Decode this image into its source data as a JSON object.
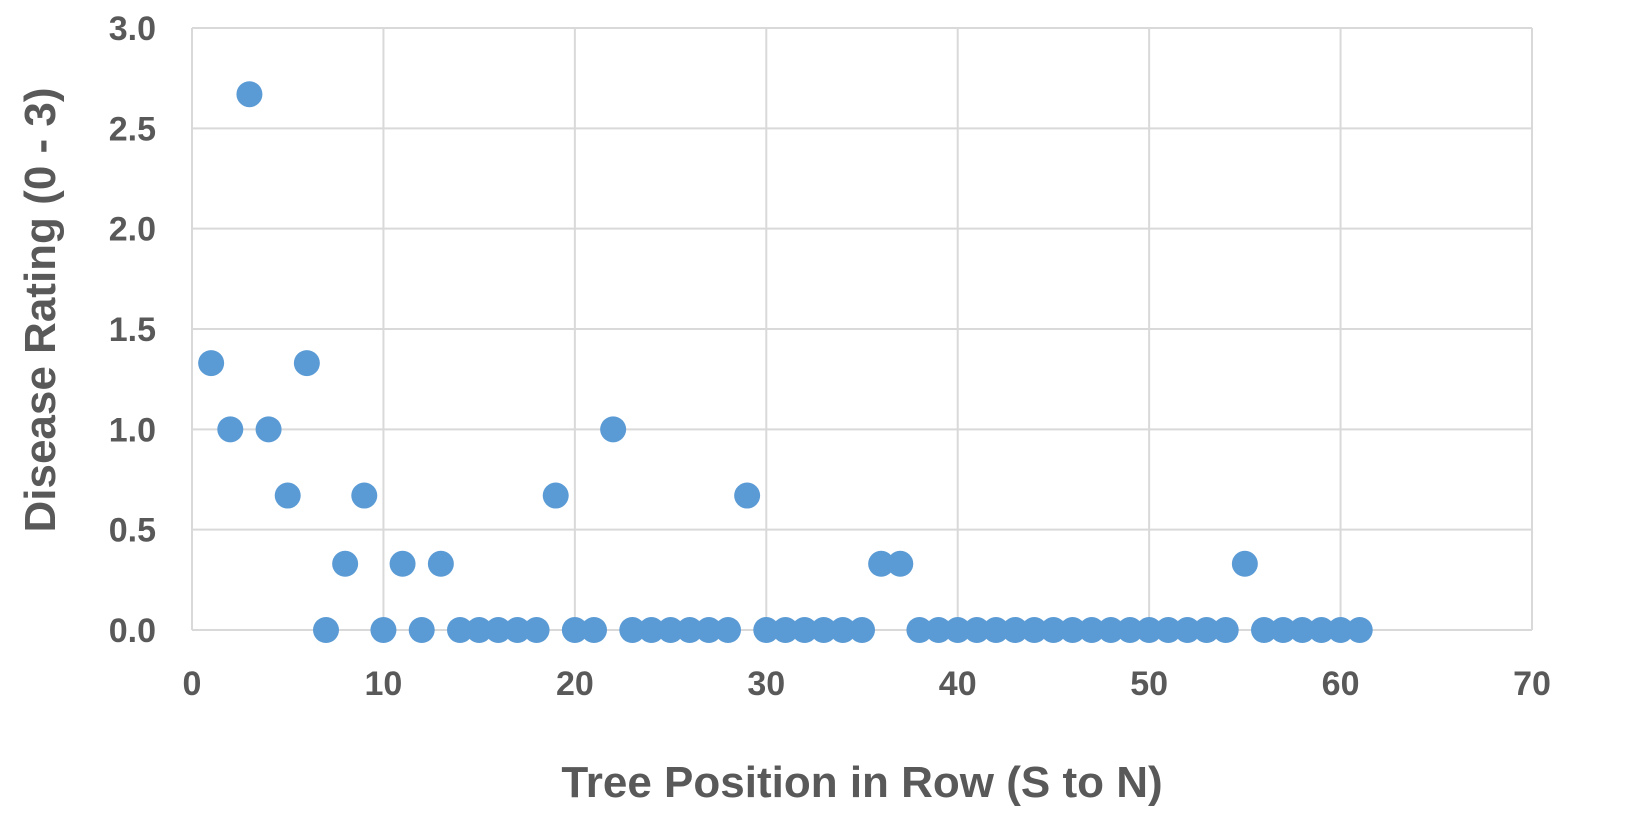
{
  "chart_data": {
    "type": "scatter",
    "title": "",
    "xlabel": "Tree Position in Row (S to N)",
    "ylabel": "Disease Rating (0 - 3)",
    "xlim": [
      0,
      70
    ],
    "ylim": [
      0,
      3
    ],
    "x_ticks": [
      "0",
      "10",
      "20",
      "30",
      "40",
      "50",
      "60",
      "70"
    ],
    "y_ticks": [
      "0.0",
      "0.5",
      "1.0",
      "1.5",
      "2.0",
      "2.5",
      "3.0"
    ],
    "grid": true,
    "legend": "none",
    "marker_color": "#5b9bd5",
    "series": [
      {
        "x": [
          1,
          2,
          3,
          4,
          5,
          6,
          7,
          8,
          9,
          10,
          11,
          12,
          13,
          14,
          15,
          16,
          17,
          18,
          19,
          20,
          21,
          22,
          23,
          24,
          25,
          26,
          27,
          28,
          29,
          30,
          31,
          32,
          33,
          34,
          35,
          36,
          37,
          38,
          39,
          40,
          41,
          42,
          43,
          44,
          45,
          46,
          47,
          48,
          49,
          50,
          51,
          52,
          53,
          54,
          55,
          56,
          57,
          58,
          59,
          60,
          61
        ],
        "y": [
          1.33,
          1.0,
          2.67,
          1.0,
          0.67,
          1.33,
          0,
          0.33,
          0.67,
          0,
          0.33,
          0,
          0.33,
          0,
          0,
          0,
          0,
          0,
          0.67,
          0,
          0,
          1.0,
          0,
          0,
          0,
          0,
          0,
          0,
          0.67,
          0,
          0,
          0,
          0,
          0,
          0,
          0.33,
          0.33,
          0,
          0,
          0,
          0,
          0,
          0,
          0,
          0,
          0,
          0,
          0,
          0,
          0,
          0,
          0,
          0,
          0,
          0.33,
          0,
          0,
          0,
          0,
          0,
          0
        ]
      }
    ]
  }
}
